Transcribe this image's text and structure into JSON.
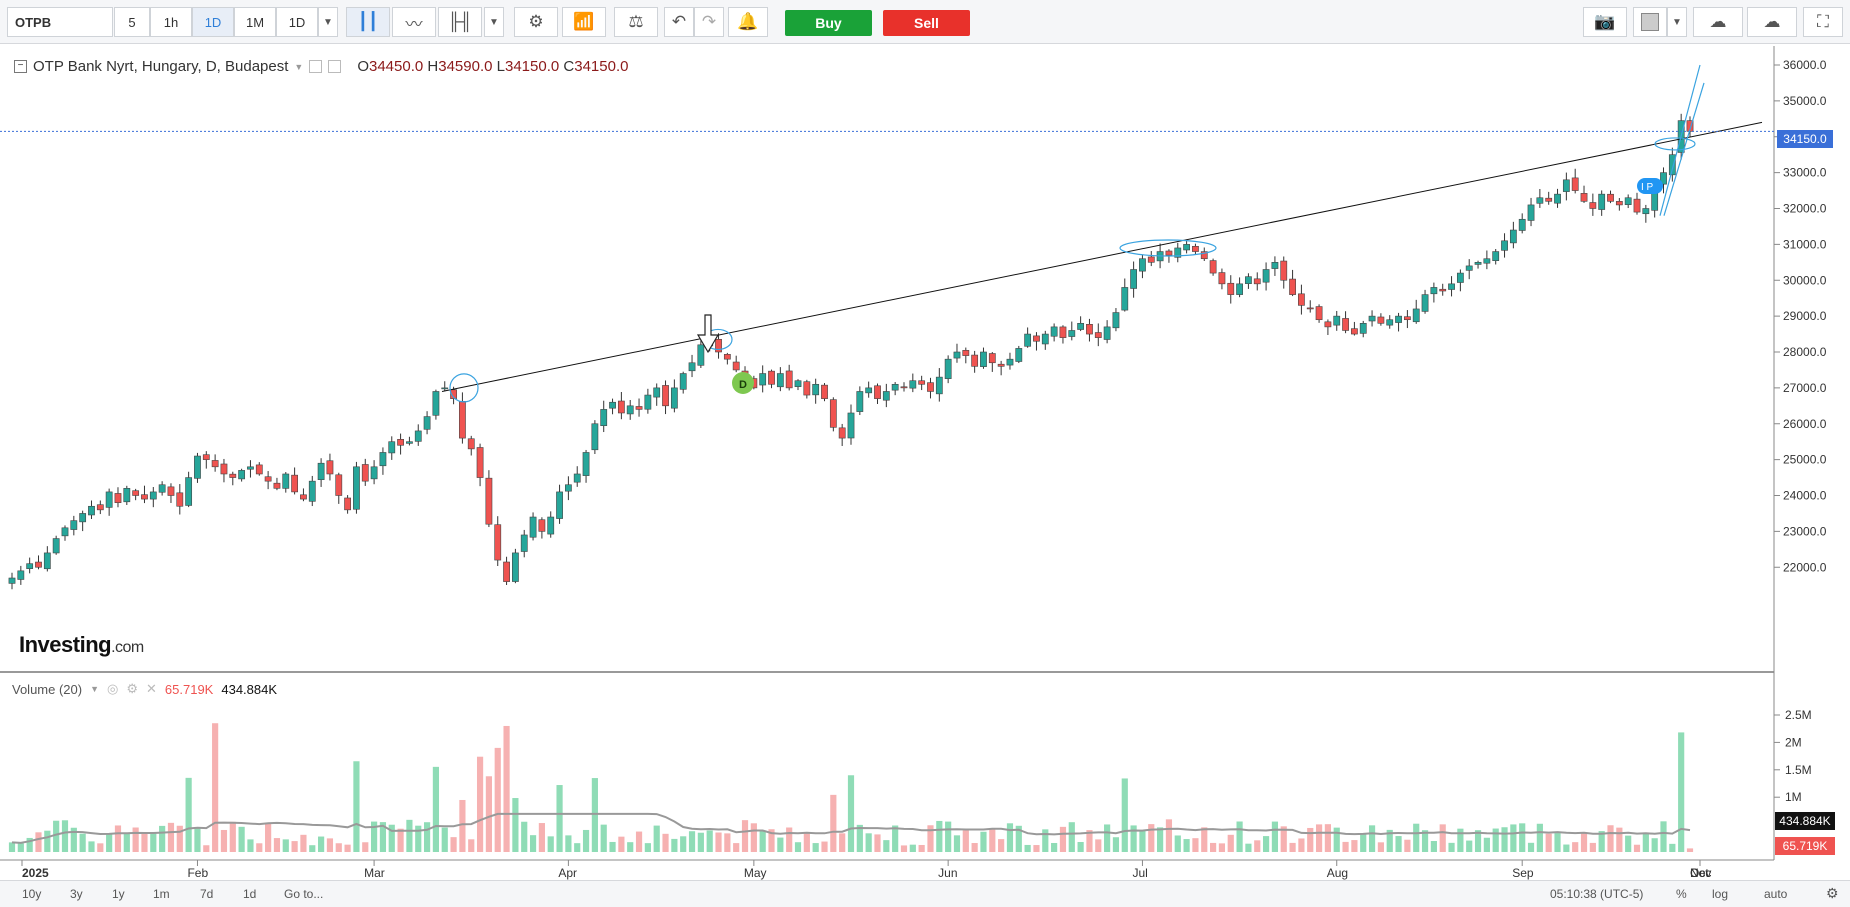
{
  "toolbar": {
    "symbol": "OTPB",
    "intervals": [
      "5",
      "1h",
      "1D",
      "1M",
      "1D"
    ],
    "buy_label": "Buy",
    "sell_label": "Sell"
  },
  "legend": {
    "title": "OTP Bank Nyrt, Hungary, D, Budapest",
    "open_label": "O",
    "open": "34450.0",
    "high_label": "H",
    "high": "34590.0",
    "low_label": "L",
    "low": "34150.0",
    "close_label": "C",
    "close": "34150.0"
  },
  "volume_legend": {
    "label": "Volume (20)",
    "current": "65.719K",
    "average": "434.884K"
  },
  "price_axis": [
    "36000.0",
    "35000.0",
    "34000.0",
    "33000.0",
    "32000.0",
    "31000.0",
    "30000.0",
    "29000.0",
    "28000.0",
    "27000.0",
    "26000.0",
    "25000.0",
    "24000.0",
    "23000.0",
    "22000.0"
  ],
  "volume_axis": [
    "2.5M",
    "2M",
    "1.5M",
    "1M"
  ],
  "current_price_tag": "34150.0",
  "volume_tags": [
    "434.884K",
    "65.719K"
  ],
  "time_axis": [
    "2025",
    "Feb",
    "Mar",
    "Apr",
    "May",
    "Jun",
    "Jul",
    "Aug",
    "Sep",
    "Oct",
    "Nov",
    "Dec"
  ],
  "markers": {
    "dividend": "D",
    "ip": "I P"
  },
  "logo": {
    "brand": "Investing",
    "suffix": ".com"
  },
  "bottom_bar": {
    "ranges": [
      "10y",
      "3y",
      "1y",
      "1m",
      "7d",
      "1d"
    ],
    "goto": "Go to...",
    "time": "05:10:38 (UTC-5)",
    "percent": "%",
    "log": "log",
    "auto": "auto"
  },
  "colors": {
    "up": "#26a69a",
    "down": "#ef5350",
    "up_volume": "#8fdcb6",
    "down_volume": "#f6b1b1",
    "accent": "#3a6fd8"
  },
  "chart_data": {
    "type": "candlestick",
    "title": "OTP Bank Nyrt, Hungary, D, Budapest",
    "ylim": [
      21500,
      36300
    ],
    "month_ticks": [
      "2025",
      "Feb",
      "Mar",
      "Apr",
      "May",
      "Jun",
      "Jul",
      "Aug",
      "Sep",
      "Oct",
      "Nov",
      "Dec"
    ],
    "close": [
      21700,
      21900,
      22100,
      22000,
      22400,
      22800,
      23100,
      23300,
      23500,
      23700,
      23600,
      24100,
      23800,
      24200,
      24000,
      23900,
      24100,
      24300,
      24000,
      23700,
      24500,
      25100,
      25000,
      24800,
      24600,
      24500,
      24700,
      24800,
      24600,
      24400,
      24200,
      24600,
      24100,
      23900,
      24400,
      24900,
      24600,
      24000,
      23600,
      24800,
      24400,
      24800,
      25200,
      25500,
      25400,
      25500,
      25800,
      26200,
      26900,
      27000,
      26700,
      25600,
      25300,
      24500,
      23200,
      22200,
      21600,
      22400,
      22900,
      23400,
      23000,
      23400,
      24100,
      24300,
      24600,
      25200,
      26000,
      26400,
      26600,
      26300,
      26500,
      26400,
      26800,
      27000,
      26500,
      27000,
      27400,
      27700,
      28200,
      28400,
      28000,
      27800,
      27500,
      27200,
      27000,
      27400,
      27100,
      27400,
      27000,
      27200,
      26800,
      27100,
      26700,
      25900,
      25600,
      26300,
      26900,
      27000,
      26700,
      26900,
      27100,
      27000,
      27200,
      27100,
      26900,
      27300,
      27800,
      28000,
      27900,
      27600,
      28000,
      27700,
      27600,
      27800,
      28100,
      28500,
      28300,
      28500,
      28700,
      28400,
      28600,
      28800,
      28500,
      28400,
      28700,
      29100,
      29800,
      30300,
      30600,
      30500,
      30800,
      30700,
      30900,
      31000,
      30800,
      30600,
      30200,
      29900,
      29600,
      29900,
      30100,
      29900,
      30300,
      30500,
      30000,
      29600,
      29300,
      29200,
      28900,
      28700,
      29000,
      28600,
      28500,
      28800,
      29000,
      28800,
      28900,
      29000,
      28900,
      29200,
      29600,
      29800,
      29700,
      29900,
      30200,
      30400,
      30500,
      30600,
      30800,
      31100,
      31400,
      31700,
      32100,
      32300,
      32200,
      32400,
      32800,
      32500,
      32200,
      32000,
      32400,
      32200,
      32100,
      32300,
      31900,
      32000,
      32600,
      33000,
      33500,
      34450,
      34150
    ],
    "trendline_prices": [
      26900,
      34400
    ],
    "volume_ylim": [
      0,
      2500000
    ],
    "volume_current": 65719,
    "volume_average": 434884
  }
}
